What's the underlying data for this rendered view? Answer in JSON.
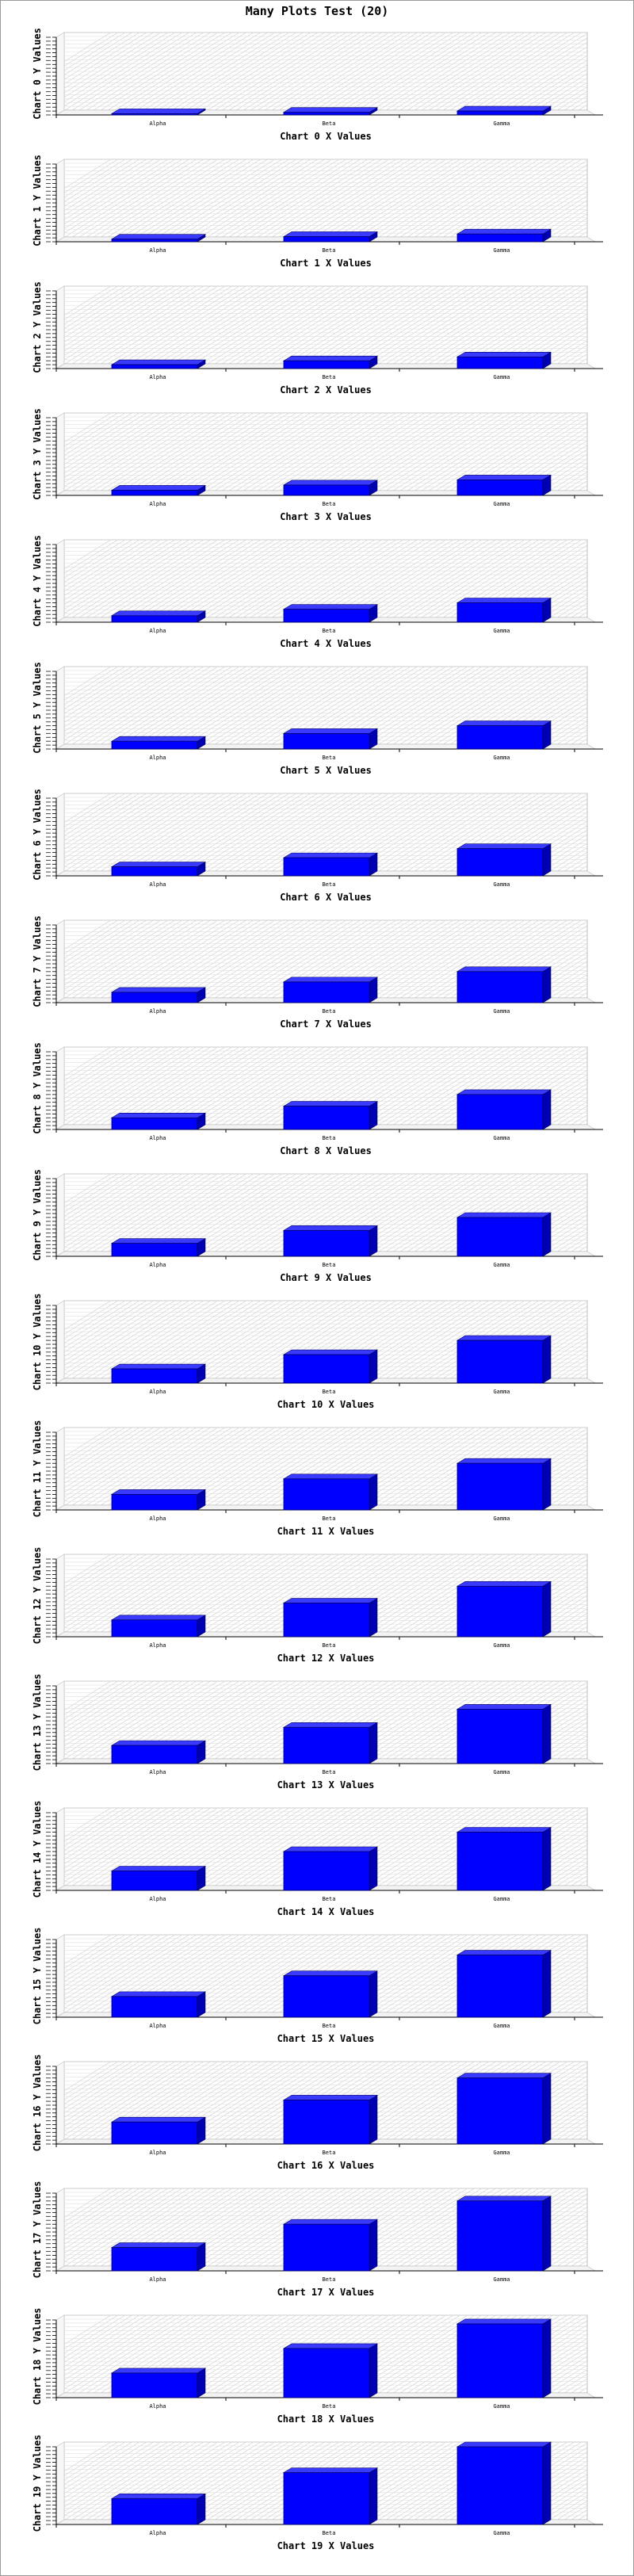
{
  "page": {
    "title": "Many Plots Test (20)"
  },
  "colors": {
    "bar_fill": "#0000ff",
    "bar_edge": "#000066",
    "grid": "#cfcfcf",
    "axis": "#000000"
  },
  "chart_data": [
    {
      "type": "bar",
      "categories": [
        "Alpha",
        "Beta",
        "Gamma"
      ],
      "values": [
        1,
        2,
        3
      ],
      "xlabel": "Chart 0 X Values",
      "ylabel": "Chart 0 Y Values",
      "grid": true,
      "three_d": true
    },
    {
      "type": "bar",
      "categories": [
        "Alpha",
        "Beta",
        "Gamma"
      ],
      "values": [
        2,
        4,
        6
      ],
      "xlabel": "Chart 1 X Values",
      "ylabel": "Chart 1 Y Values",
      "grid": true,
      "three_d": true
    },
    {
      "type": "bar",
      "categories": [
        "Alpha",
        "Beta",
        "Gamma"
      ],
      "values": [
        3,
        6,
        9
      ],
      "xlabel": "Chart 2 X Values",
      "ylabel": "Chart 2 Y Values",
      "grid": true,
      "three_d": true
    },
    {
      "type": "bar",
      "categories": [
        "Alpha",
        "Beta",
        "Gamma"
      ],
      "values": [
        4,
        8,
        12
      ],
      "xlabel": "Chart 3 X Values",
      "ylabel": "Chart 3 Y Values",
      "grid": true,
      "three_d": true
    },
    {
      "type": "bar",
      "categories": [
        "Alpha",
        "Beta",
        "Gamma"
      ],
      "values": [
        5,
        10,
        15
      ],
      "xlabel": "Chart 4 X Values",
      "ylabel": "Chart 4 Y Values",
      "grid": true,
      "three_d": true
    },
    {
      "type": "bar",
      "categories": [
        "Alpha",
        "Beta",
        "Gamma"
      ],
      "values": [
        6,
        12,
        18
      ],
      "xlabel": "Chart 5 X Values",
      "ylabel": "Chart 5 Y Values",
      "grid": true,
      "three_d": true
    },
    {
      "type": "bar",
      "categories": [
        "Alpha",
        "Beta",
        "Gamma"
      ],
      "values": [
        7,
        14,
        21
      ],
      "xlabel": "Chart 6 X Values",
      "ylabel": "Chart 6 Y Values",
      "grid": true,
      "three_d": true
    },
    {
      "type": "bar",
      "categories": [
        "Alpha",
        "Beta",
        "Gamma"
      ],
      "values": [
        8,
        16,
        24
      ],
      "xlabel": "Chart 7 X Values",
      "ylabel": "Chart 7 Y Values",
      "grid": true,
      "three_d": true
    },
    {
      "type": "bar",
      "categories": [
        "Alpha",
        "Beta",
        "Gamma"
      ],
      "values": [
        9,
        18,
        27
      ],
      "xlabel": "Chart 8 X Values",
      "ylabel": "Chart 8 Y Values",
      "grid": true,
      "three_d": true
    },
    {
      "type": "bar",
      "categories": [
        "Alpha",
        "Beta",
        "Gamma"
      ],
      "values": [
        10,
        20,
        30
      ],
      "xlabel": "Chart 9 X Values",
      "ylabel": "Chart 9 Y Values",
      "grid": true,
      "three_d": true
    },
    {
      "type": "bar",
      "categories": [
        "Alpha",
        "Beta",
        "Gamma"
      ],
      "values": [
        11,
        22,
        33
      ],
      "xlabel": "Chart 10 X Values",
      "ylabel": "Chart 10 Y Values",
      "grid": true,
      "three_d": true
    },
    {
      "type": "bar",
      "categories": [
        "Alpha",
        "Beta",
        "Gamma"
      ],
      "values": [
        12,
        24,
        36
      ],
      "xlabel": "Chart 11 X Values",
      "ylabel": "Chart 11 Y Values",
      "grid": true,
      "three_d": true
    },
    {
      "type": "bar",
      "categories": [
        "Alpha",
        "Beta",
        "Gamma"
      ],
      "values": [
        13,
        26,
        39
      ],
      "xlabel": "Chart 12 X Values",
      "ylabel": "Chart 12 Y Values",
      "grid": true,
      "three_d": true
    },
    {
      "type": "bar",
      "categories": [
        "Alpha",
        "Beta",
        "Gamma"
      ],
      "values": [
        14,
        28,
        42
      ],
      "xlabel": "Chart 13 X Values",
      "ylabel": "Chart 13 Y Values",
      "grid": true,
      "three_d": true
    },
    {
      "type": "bar",
      "categories": [
        "Alpha",
        "Beta",
        "Gamma"
      ],
      "values": [
        15,
        30,
        45
      ],
      "xlabel": "Chart 14 X Values",
      "ylabel": "Chart 14 Y Values",
      "grid": true,
      "three_d": true
    },
    {
      "type": "bar",
      "categories": [
        "Alpha",
        "Beta",
        "Gamma"
      ],
      "values": [
        16,
        32,
        48
      ],
      "xlabel": "Chart 15 X Values",
      "ylabel": "Chart 15 Y Values",
      "grid": true,
      "three_d": true
    },
    {
      "type": "bar",
      "categories": [
        "Alpha",
        "Beta",
        "Gamma"
      ],
      "values": [
        17,
        34,
        51
      ],
      "xlabel": "Chart 16 X Values",
      "ylabel": "Chart 16 Y Values",
      "grid": true,
      "three_d": true
    },
    {
      "type": "bar",
      "categories": [
        "Alpha",
        "Beta",
        "Gamma"
      ],
      "values": [
        18,
        36,
        54
      ],
      "xlabel": "Chart 17 X Values",
      "ylabel": "Chart 17 Y Values",
      "grid": true,
      "three_d": true
    },
    {
      "type": "bar",
      "categories": [
        "Alpha",
        "Beta",
        "Gamma"
      ],
      "values": [
        19,
        38,
        57
      ],
      "xlabel": "Chart 18 X Values",
      "ylabel": "Chart 18 Y Values",
      "grid": true,
      "three_d": true
    },
    {
      "type": "bar",
      "categories": [
        "Alpha",
        "Beta",
        "Gamma"
      ],
      "values": [
        20,
        40,
        60
      ],
      "xlabel": "Chart 19 X Values",
      "ylabel": "Chart 19 Y Values",
      "grid": true,
      "three_d": true
    }
  ]
}
